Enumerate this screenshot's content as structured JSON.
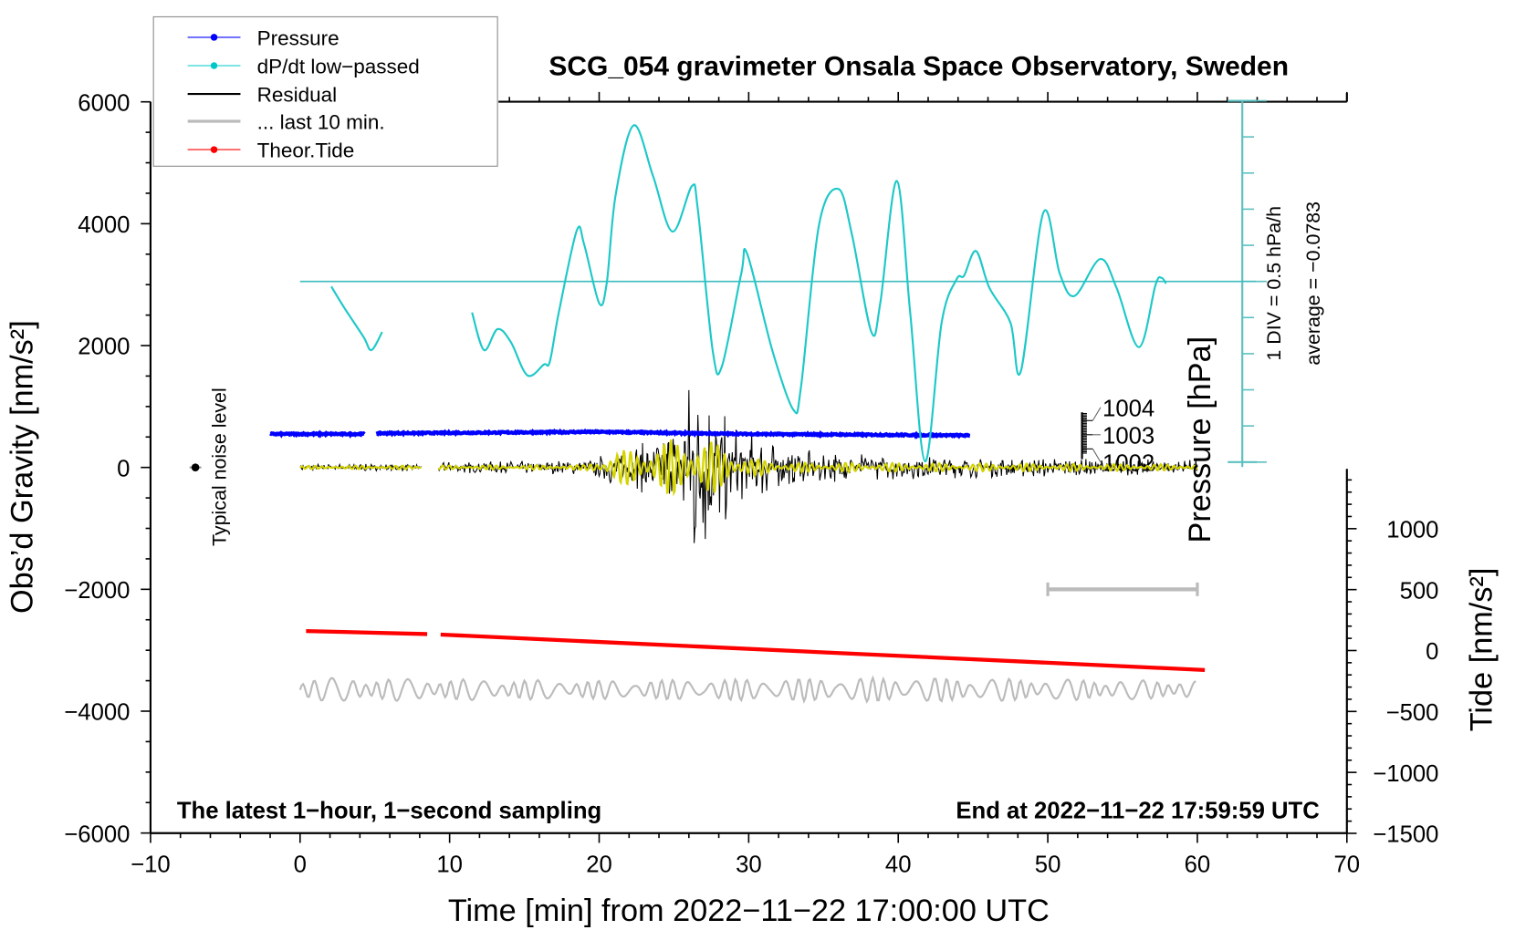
{
  "chart_data": {
    "type": "line",
    "title": "SCG_054 gravimeter Onsala Space Observatory, Sweden",
    "xlabel": "Time [min] from 2022−11−22 17:00:00 UTC",
    "ylabel": "Obs’d Gravity [nm/s²]",
    "y2label": "Tide [nm/s²]",
    "pressure_label": "Pressure [hPa]",
    "dpdt_scale_label": "1 DIV = 0.5 hPa/h",
    "dpdt_average_label": "average = −0.0783",
    "noise_label": "Typical noise level",
    "note_left": "The latest 1−hour, 1−second sampling",
    "note_right": "End at 2022−11−22 17:59:59 UTC",
    "xlim": [
      -10,
      70
    ],
    "ylim": [
      -6000,
      6000
    ],
    "y2lim": [
      -1500,
      1500
    ],
    "xticks": [
      "−10",
      "0",
      "10",
      "20",
      "30",
      "40",
      "50",
      "60",
      "70"
    ],
    "yticks": [
      "6000",
      "4000",
      "2000",
      "0",
      "−2000",
      "−4000",
      "−6000"
    ],
    "y2ticks": [
      "1000",
      "500",
      "0",
      "−500",
      "−1000",
      "−1500"
    ],
    "pressure_ticks": [
      "1004",
      "1003",
      "1002"
    ],
    "legend": {
      "placement": "top-left",
      "entries": [
        {
          "label": "Pressure",
          "color": "#0000ff"
        },
        {
          "label": "dP/dt low−passed",
          "color": "#00c8c8"
        },
        {
          "label": "Residual",
          "color": "#000000"
        },
        {
          "label": "... last 10 min.",
          "color": "#bbbbbb"
        },
        {
          "label": "Theor.Tide",
          "color": "#ff0000"
        }
      ]
    },
    "series": {
      "pressure_hPa": {
        "segments": [
          [
            [
              -2,
              1003.05
            ],
            [
              4.3,
              1003.05
            ]
          ],
          [
            [
              5.1,
              1003.1
            ],
            [
              20,
              1003.2
            ],
            [
              30,
              1003.05
            ],
            [
              44.8,
              1002.95
            ]
          ]
        ]
      },
      "dpdt_hPa_per_h": {
        "baseline": 0,
        "segments": [
          [
            [
              2.09,
              -0.07
            ],
            [
              2.94,
              -0.36
            ],
            [
              4.25,
              -0.77
            ],
            [
              4.77,
              -0.95
            ],
            [
              5.49,
              -0.7
            ]
          ],
          [
            [
              11.5,
              -0.43
            ],
            [
              12.3,
              -0.95
            ],
            [
              13.2,
              -0.66
            ],
            [
              14.1,
              -0.84
            ],
            [
              15.2,
              -1.3
            ],
            [
              16.3,
              -1.15
            ],
            [
              16.7,
              -1.11
            ],
            [
              17.3,
              -0.43
            ],
            [
              18.5,
              0.7
            ],
            [
              19.0,
              0.51
            ],
            [
              20.0,
              -0.3
            ],
            [
              20.5,
              -0.03
            ],
            [
              21.1,
              1.19
            ],
            [
              22.3,
              2.16
            ],
            [
              23.6,
              1.46
            ],
            [
              24.9,
              0.69
            ],
            [
              26.2,
              1.32
            ],
            [
              26.6,
              0.99
            ],
            [
              27.6,
              -0.97
            ],
            [
              28.2,
              -1.18
            ],
            [
              29.5,
              0.11
            ],
            [
              29.9,
              0.38
            ],
            [
              31.6,
              -0.97
            ],
            [
              33.0,
              -1.78
            ],
            [
              33.5,
              -1.45
            ],
            [
              34.7,
              0.78
            ],
            [
              36.0,
              1.28
            ],
            [
              36.9,
              0.65
            ],
            [
              38.2,
              -0.7
            ],
            [
              38.8,
              -0.3
            ],
            [
              39.9,
              1.39
            ],
            [
              40.8,
              -0.43
            ],
            [
              41.8,
              -2.49
            ],
            [
              42.9,
              -0.57
            ],
            [
              43.9,
              0.03
            ],
            [
              44.4,
              0.08
            ],
            [
              45.2,
              0.42
            ],
            [
              46.1,
              -0.09
            ],
            [
              47.5,
              -0.57
            ],
            [
              48.2,
              -1.24
            ],
            [
              49.7,
              0.95
            ],
            [
              50.8,
              0.11
            ],
            [
              51.8,
              -0.2
            ],
            [
              53.5,
              0.31
            ],
            [
              54.6,
              -0.09
            ],
            [
              56.1,
              -0.91
            ],
            [
              57.2,
              -0.05
            ],
            [
              57.6,
              0.05
            ],
            [
              57.9,
              -0.03
            ]
          ]
        ]
      },
      "residual_amplitude_envelope": [
        [
          0,
          60
        ],
        [
          8,
          60
        ],
        [
          9,
          90
        ],
        [
          19,
          120
        ],
        [
          21,
          300
        ],
        [
          24,
          500
        ],
        [
          25.5,
          900
        ],
        [
          26.5,
          2000
        ],
        [
          27.5,
          1300
        ],
        [
          29,
          700
        ],
        [
          31,
          500
        ],
        [
          33,
          300
        ],
        [
          36,
          250
        ],
        [
          40,
          200
        ],
        [
          45,
          170
        ],
        [
          60,
          130
        ]
      ],
      "residual_gaps": [
        [
          8.1,
          9.2
        ]
      ],
      "filtered_amplitude_envelope": [
        [
          0,
          25
        ],
        [
          19,
          40
        ],
        [
          21,
          250
        ],
        [
          24,
          400
        ],
        [
          26,
          550
        ],
        [
          28,
          400
        ],
        [
          30,
          150
        ],
        [
          33,
          80
        ],
        [
          60,
          50
        ]
      ],
      "last10_center_nms2": -3650,
      "last10_amplitude_envelope": [
        [
          0,
          200
        ],
        [
          20,
          150
        ],
        [
          40,
          200
        ],
        [
          60,
          150
        ]
      ],
      "tide_nms2": {
        "segments": [
          [
            [
              0.4,
              160
            ],
            [
              8.5,
              135
            ]
          ],
          [
            [
              9.4,
              131
            ],
            [
              60.5,
              -160
            ]
          ]
        ]
      },
      "noise_level": {
        "t": -7,
        "value": 0
      },
      "scale_bar": {
        "t_start": 50,
        "t_end": 60,
        "value": -2000
      }
    }
  }
}
